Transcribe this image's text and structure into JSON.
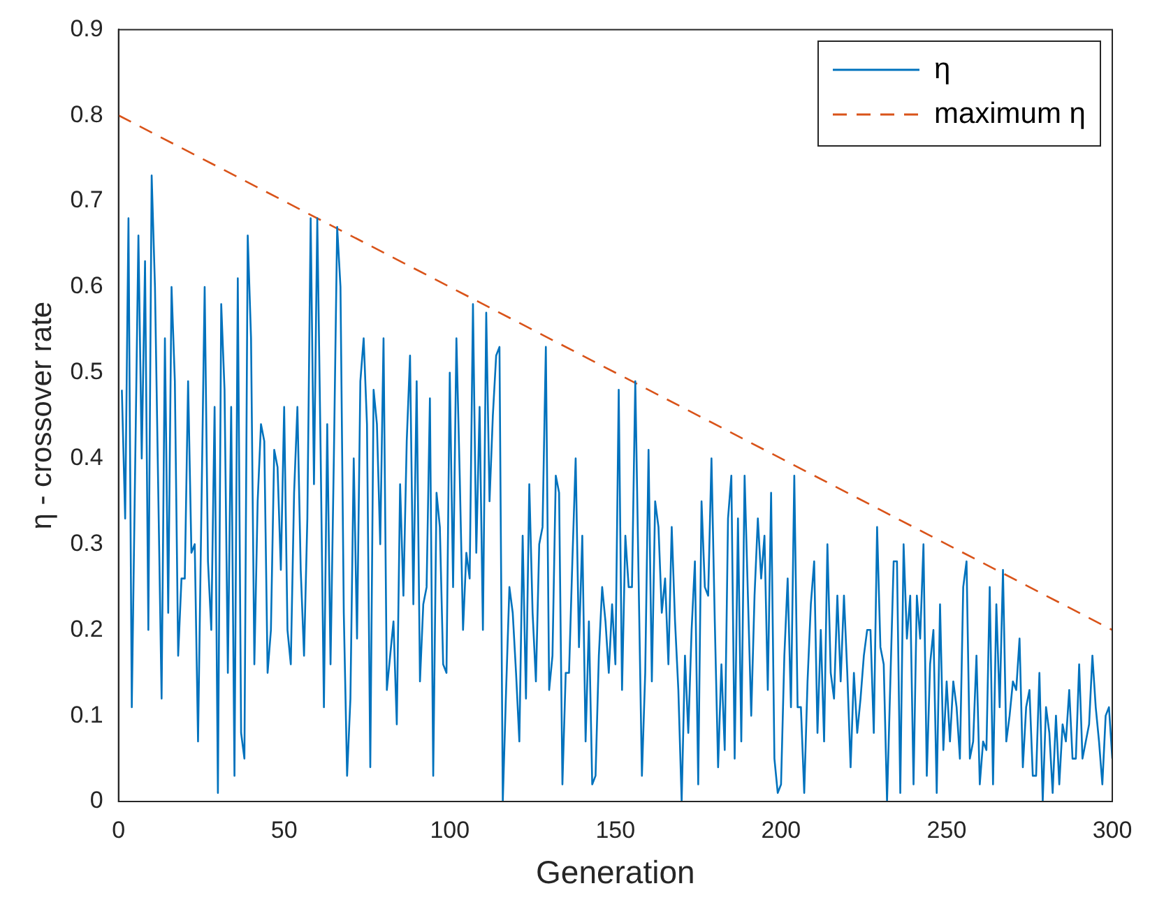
{
  "chart_data": {
    "type": "line",
    "xlabel": "Generation",
    "ylabel": "η - crossover rate",
    "xlim": [
      0,
      300
    ],
    "xticks": [
      0,
      50,
      100,
      150,
      200,
      250,
      300
    ],
    "ylim": [
      0,
      0.9
    ],
    "yticks": [
      0,
      0.1,
      0.2,
      0.3,
      0.4,
      0.5,
      0.6,
      0.7,
      0.8,
      0.9
    ],
    "legend": "top right",
    "series": [
      {
        "name": "η",
        "color": "#0072bd",
        "line_style": "solid",
        "x": [
          1,
          2,
          3,
          4,
          6,
          7,
          8,
          9,
          10,
          11,
          13,
          14,
          15,
          16,
          17,
          18,
          19,
          20,
          21,
          22,
          23,
          24,
          26,
          27,
          28,
          29,
          30,
          31,
          32,
          33,
          34,
          35,
          36,
          37,
          38,
          39,
          40,
          41,
          42,
          43,
          44,
          45,
          46,
          47,
          48,
          49,
          50,
          51,
          52,
          53,
          54,
          55,
          56,
          57,
          58,
          59,
          60,
          61,
          62,
          63,
          64,
          65,
          66,
          67,
          68,
          69,
          70,
          71,
          72,
          73,
          74,
          75,
          76,
          77,
          78,
          79,
          80,
          81,
          82,
          83,
          84,
          85,
          86,
          87,
          88,
          89,
          90,
          91,
          92,
          93,
          94,
          95,
          96,
          97,
          98,
          99,
          100,
          101,
          102,
          103,
          104,
          105,
          106,
          107,
          108,
          109,
          110,
          111,
          112,
          113,
          114,
          115,
          116,
          117,
          118,
          119,
          120,
          121,
          122,
          123,
          124,
          125,
          126,
          127,
          128,
          129,
          130,
          131,
          132,
          133,
          134,
          135,
          136,
          137,
          138,
          139,
          140,
          141,
          142,
          143,
          144,
          145,
          146,
          147,
          148,
          149,
          150,
          151,
          152,
          153,
          154,
          155,
          156,
          158,
          159,
          160,
          161,
          162,
          163,
          164,
          165,
          166,
          167,
          168,
          169,
          170,
          171,
          172,
          173,
          174,
          175,
          176,
          177,
          178,
          179,
          180,
          181,
          182,
          183,
          184,
          185,
          186,
          187,
          188,
          189,
          190,
          191,
          192,
          193,
          194,
          195,
          196,
          197,
          198,
          199,
          200,
          201,
          202,
          203,
          204,
          205,
          206,
          207,
          208,
          209,
          210,
          211,
          212,
          213,
          214,
          215,
          216,
          217,
          218,
          219,
          220,
          221,
          222,
          223,
          224,
          225,
          226,
          227,
          228,
          229,
          230,
          231,
          232,
          233,
          234,
          235,
          236,
          237,
          238,
          239,
          240,
          241,
          242,
          243,
          244,
          245,
          246,
          247,
          248,
          249,
          250,
          251,
          252,
          253,
          254,
          255,
          256,
          257,
          258,
          259,
          260,
          261,
          262,
          263,
          264,
          265,
          266,
          267,
          268,
          269,
          270,
          271,
          272,
          273,
          274,
          275,
          276,
          277,
          278,
          279,
          280,
          281,
          282,
          283,
          284,
          285,
          286,
          287,
          288,
          289,
          290,
          291,
          292,
          293,
          294,
          295,
          296,
          297,
          298,
          299,
          300
        ],
        "values": [
          0.48,
          0.33,
          0.68,
          0.11,
          0.66,
          0.4,
          0.63,
          0.2,
          0.73,
          0.6,
          0.12,
          0.54,
          0.22,
          0.6,
          0.49,
          0.17,
          0.26,
          0.26,
          0.49,
          0.29,
          0.3,
          0.07,
          0.6,
          0.28,
          0.2,
          0.46,
          0.01,
          0.58,
          0.48,
          0.15,
          0.46,
          0.03,
          0.61,
          0.08,
          0.05,
          0.66,
          0.54,
          0.16,
          0.35,
          0.44,
          0.42,
          0.15,
          0.2,
          0.41,
          0.39,
          0.27,
          0.46,
          0.2,
          0.16,
          0.36,
          0.46,
          0.27,
          0.17,
          0.33,
          0.68,
          0.37,
          0.68,
          0.41,
          0.11,
          0.44,
          0.16,
          0.4,
          0.67,
          0.6,
          0.22,
          0.03,
          0.12,
          0.4,
          0.19,
          0.49,
          0.54,
          0.44,
          0.04,
          0.48,
          0.44,
          0.3,
          0.54,
          0.13,
          0.17,
          0.21,
          0.09,
          0.37,
          0.24,
          0.42,
          0.52,
          0.23,
          0.49,
          0.14,
          0.23,
          0.25,
          0.47,
          0.03,
          0.36,
          0.32,
          0.16,
          0.15,
          0.5,
          0.25,
          0.54,
          0.38,
          0.2,
          0.29,
          0.26,
          0.58,
          0.29,
          0.46,
          0.2,
          0.57,
          0.35,
          0.45,
          0.52,
          0.53,
          0,
          0.13,
          0.25,
          0.22,
          0.15,
          0.07,
          0.31,
          0.12,
          0.37,
          0.22,
          0.14,
          0.3,
          0.32,
          0.53,
          0.13,
          0.17,
          0.38,
          0.36,
          0.02,
          0.15,
          0.15,
          0.28,
          0.4,
          0.18,
          0.31,
          0.07,
          0.21,
          0.02,
          0.03,
          0.17,
          0.25,
          0.21,
          0.15,
          0.23,
          0.16,
          0.48,
          0.13,
          0.31,
          0.25,
          0.25,
          0.49,
          0.03,
          0.15,
          0.41,
          0.14,
          0.35,
          0.32,
          0.22,
          0.26,
          0.16,
          0.32,
          0.21,
          0.13,
          0,
          0.17,
          0.08,
          0.2,
          0.28,
          0.02,
          0.35,
          0.25,
          0.24,
          0.4,
          0.21,
          0.04,
          0.16,
          0.06,
          0.33,
          0.38,
          0.05,
          0.33,
          0.07,
          0.38,
          0.24,
          0.1,
          0.24,
          0.33,
          0.26,
          0.31,
          0.13,
          0.36,
          0.05,
          0.01,
          0.02,
          0.17,
          0.26,
          0.11,
          0.38,
          0.11,
          0.11,
          0.01,
          0.14,
          0.23,
          0.28,
          0.08,
          0.2,
          0.07,
          0.3,
          0.15,
          0.12,
          0.24,
          0.14,
          0.24,
          0.15,
          0.04,
          0.15,
          0.08,
          0.12,
          0.17,
          0.2,
          0.2,
          0.08,
          0.32,
          0.18,
          0.16,
          0,
          0.14,
          0.28,
          0.28,
          0.01,
          0.3,
          0.19,
          0.24,
          0.02,
          0.24,
          0.19,
          0.3,
          0.03,
          0.16,
          0.2,
          0.01,
          0.23,
          0.06,
          0.14,
          0.07,
          0.14,
          0.11,
          0.05,
          0.25,
          0.28,
          0.05,
          0.07,
          0.17,
          0.02,
          0.07,
          0.06,
          0.25,
          0.02,
          0.23,
          0.11,
          0.27,
          0.07,
          0.1,
          0.14,
          0.13,
          0.19,
          0.04,
          0.11,
          0.13,
          0.03,
          0.03,
          0.15,
          0,
          0.11,
          0.08,
          0.01,
          0.1,
          0.02,
          0.09,
          0.07,
          0.13,
          0.05,
          0.05,
          0.16,
          0.05,
          0.07,
          0.09,
          0.17,
          0.11,
          0.07,
          0.02,
          0.1,
          0.11,
          0.05
        ]
      },
      {
        "name": "maximum η",
        "color": "#d95319",
        "line_style": "dashed",
        "x": [
          0,
          300
        ],
        "values": [
          0.8,
          0.2
        ]
      }
    ]
  }
}
